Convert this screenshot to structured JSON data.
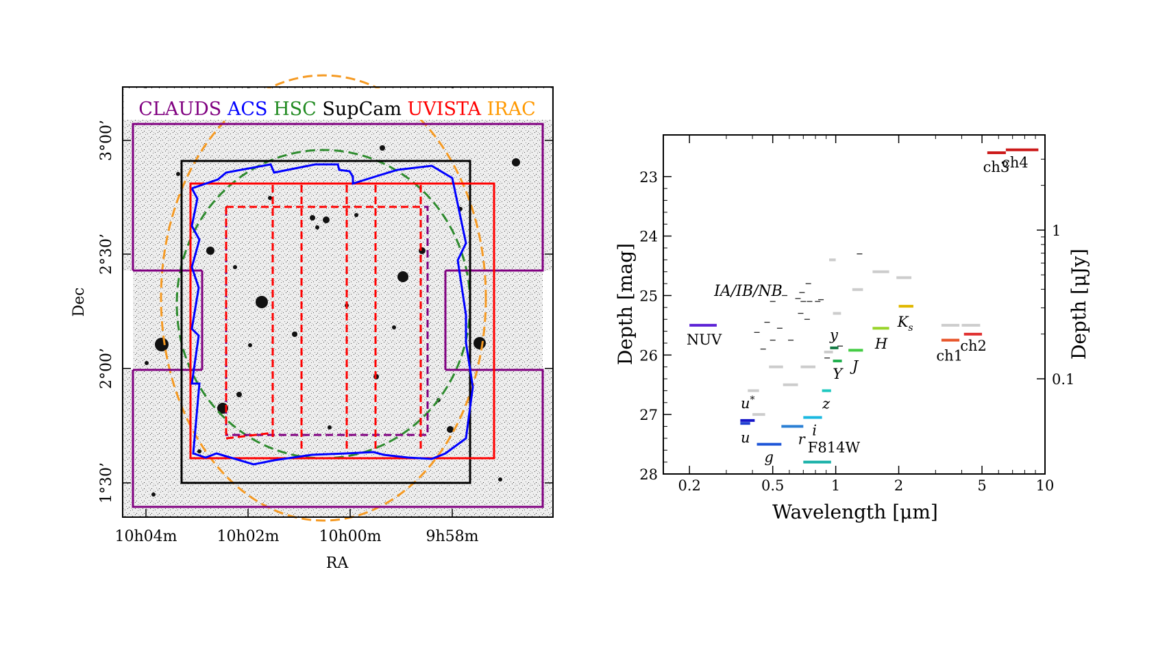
{
  "left_panel": {
    "legend": [
      {
        "label": "CLAUDS",
        "color": "#800080"
      },
      {
        "label": "ACS",
        "color": "#0000ff"
      },
      {
        "label": "HSC",
        "color": "#228b22"
      },
      {
        "label": "SupCam",
        "color": "#000000"
      },
      {
        "label": "UVISTA",
        "color": "#ff0000"
      },
      {
        "label": "IRAC",
        "color": "#ff9900"
      }
    ],
    "ylabel": "Dec",
    "xlabel": "RA",
    "xticks": [
      "10h04m",
      "10h02m",
      "10h00m",
      "9h58m"
    ],
    "yticks": [
      "3°00’",
      "2°30’",
      "2°00’",
      "1°30’"
    ]
  },
  "chart_data": {
    "type": "scatter",
    "title": "",
    "xlabel": "Wavelength [μm]",
    "ylabel": "Depth [mag]",
    "ylabel_right": "Depth [μJy]",
    "xscale": "log",
    "xlim": [
      0.15,
      10
    ],
    "ylim": [
      28,
      22.3
    ],
    "xticks": [
      0.2,
      0.5,
      1,
      2,
      5,
      10
    ],
    "xtick_labels": [
      "0.2",
      "0.5",
      "1",
      "2",
      "5",
      "10"
    ],
    "yticks": [
      23,
      24,
      25,
      26,
      27,
      28
    ],
    "ytick_labels": [
      "23",
      "24",
      "25",
      "26",
      "27",
      "28"
    ],
    "right_ticks": [
      1,
      0.1
    ],
    "right_tick_labels": [
      "1",
      "0.1"
    ],
    "bands": [
      {
        "label": "NUV",
        "x0": 0.2,
        "x1": 0.27,
        "depth": 25.5,
        "color": "#5b21d6"
      },
      {
        "label": "u*",
        "x0": 0.35,
        "x1": 0.41,
        "depth": 27.1,
        "color": "#1515c8"
      },
      {
        "label": "u",
        "x0": 0.35,
        "x1": 0.39,
        "depth": 27.15,
        "color": "#1f3fd0"
      },
      {
        "label": "g",
        "x0": 0.42,
        "x1": 0.55,
        "depth": 27.5,
        "color": "#1e56d8"
      },
      {
        "label": "r",
        "x0": 0.55,
        "x1": 0.7,
        "depth": 27.2,
        "color": "#2a7fd4"
      },
      {
        "label": "i",
        "x0": 0.7,
        "x1": 0.86,
        "depth": 27.05,
        "color": "#1ab8e0"
      },
      {
        "label": "F814W",
        "x0": 0.7,
        "x1": 0.95,
        "depth": 27.8,
        "color": "#17b0a8"
      },
      {
        "label": "z",
        "x0": 0.86,
        "x1": 0.95,
        "depth": 26.6,
        "color": "#1fc8c0"
      },
      {
        "label": "y",
        "x0": 0.94,
        "x1": 1.03,
        "depth": 25.88,
        "color": "#157a45"
      },
      {
        "label": "Y",
        "x0": 0.97,
        "x1": 1.07,
        "depth": 26.1,
        "color": "#22b04f"
      },
      {
        "label": "J",
        "x0": 1.15,
        "x1": 1.35,
        "depth": 25.92,
        "color": "#44cc44"
      },
      {
        "label": "H",
        "x0": 1.5,
        "x1": 1.8,
        "depth": 25.55,
        "color": "#99d42b"
      },
      {
        "label": "Ks",
        "x0": 2.0,
        "x1": 2.35,
        "depth": 25.18,
        "color": "#e0b800"
      },
      {
        "label": "ch1",
        "x0": 3.2,
        "x1": 3.9,
        "depth": 25.75,
        "color": "#e8552a"
      },
      {
        "label": "ch2",
        "x0": 4.1,
        "x1": 5.0,
        "depth": 25.65,
        "color": "#e03030"
      },
      {
        "label": "ch3",
        "x0": 5.3,
        "x1": 6.5,
        "depth": 22.6,
        "color": "#cc1a1a"
      },
      {
        "label": "ch4",
        "x0": 6.5,
        "x1": 9.3,
        "depth": 22.55,
        "color": "#cc1a1a"
      }
    ],
    "band_label_text": {
      "NUV": "NUV",
      "u_star_base": "u",
      "u_star_sup": "*",
      "u": "u",
      "g": "g",
      "r": "r",
      "i": "i",
      "F814W": "F814W",
      "z": "z",
      "y": "y",
      "Y": "Y",
      "J": "J",
      "H": "H",
      "Ks_base": "K",
      "Ks_sub": "s",
      "ch1": "ch1",
      "ch2": "ch2",
      "ch3": "ch3",
      "ch4": "ch4"
    },
    "medium_narrow_label": "IA/IB/NB",
    "medium_bands": [
      {
        "x0": 0.38,
        "x1": 0.43,
        "depth": 26.6
      },
      {
        "x0": 0.4,
        "x1": 0.46,
        "depth": 27.0
      },
      {
        "x0": 0.48,
        "x1": 0.56,
        "depth": 26.2
      },
      {
        "x0": 0.56,
        "x1": 0.66,
        "depth": 26.5
      },
      {
        "x0": 0.68,
        "x1": 0.8,
        "depth": 26.2
      },
      {
        "x0": 0.88,
        "x1": 0.97,
        "depth": 25.95
      },
      {
        "x0": 0.93,
        "x1": 1.0,
        "depth": 24.4
      },
      {
        "x0": 0.97,
        "x1": 1.06,
        "depth": 25.3
      },
      {
        "x0": 1.2,
        "x1": 1.35,
        "depth": 24.9
      },
      {
        "x0": 1.5,
        "x1": 1.8,
        "depth": 24.6
      },
      {
        "x0": 1.95,
        "x1": 2.3,
        "depth": 24.7
      },
      {
        "x0": 3.2,
        "x1": 3.9,
        "depth": 25.5
      },
      {
        "x0": 4.0,
        "x1": 4.9,
        "depth": 25.5
      }
    ],
    "narrow_bands": [
      {
        "x": 0.5,
        "depth": 25.1
      },
      {
        "x": 0.57,
        "depth": 25.0
      },
      {
        "x": 0.66,
        "depth": 25.05
      },
      {
        "x": 0.69,
        "depth": 24.95
      },
      {
        "x": 0.7,
        "depth": 25.1
      },
      {
        "x": 0.74,
        "depth": 24.8
      },
      {
        "x": 0.75,
        "depth": 25.1
      },
      {
        "x": 0.82,
        "depth": 25.1
      },
      {
        "x": 0.85,
        "depth": 25.07
      },
      {
        "x": 0.68,
        "depth": 25.3
      },
      {
        "x": 0.73,
        "depth": 25.4
      },
      {
        "x": 0.47,
        "depth": 25.45
      },
      {
        "x": 0.54,
        "depth": 25.55
      },
      {
        "x": 0.42,
        "depth": 25.62
      },
      {
        "x": 0.5,
        "depth": 25.75
      },
      {
        "x": 0.61,
        "depth": 25.75
      },
      {
        "x": 0.45,
        "depth": 25.9
      },
      {
        "x": 0.91,
        "depth": 26.05
      },
      {
        "x": 1.05,
        "depth": 25.85
      },
      {
        "x": 1.3,
        "depth": 24.3
      }
    ]
  }
}
